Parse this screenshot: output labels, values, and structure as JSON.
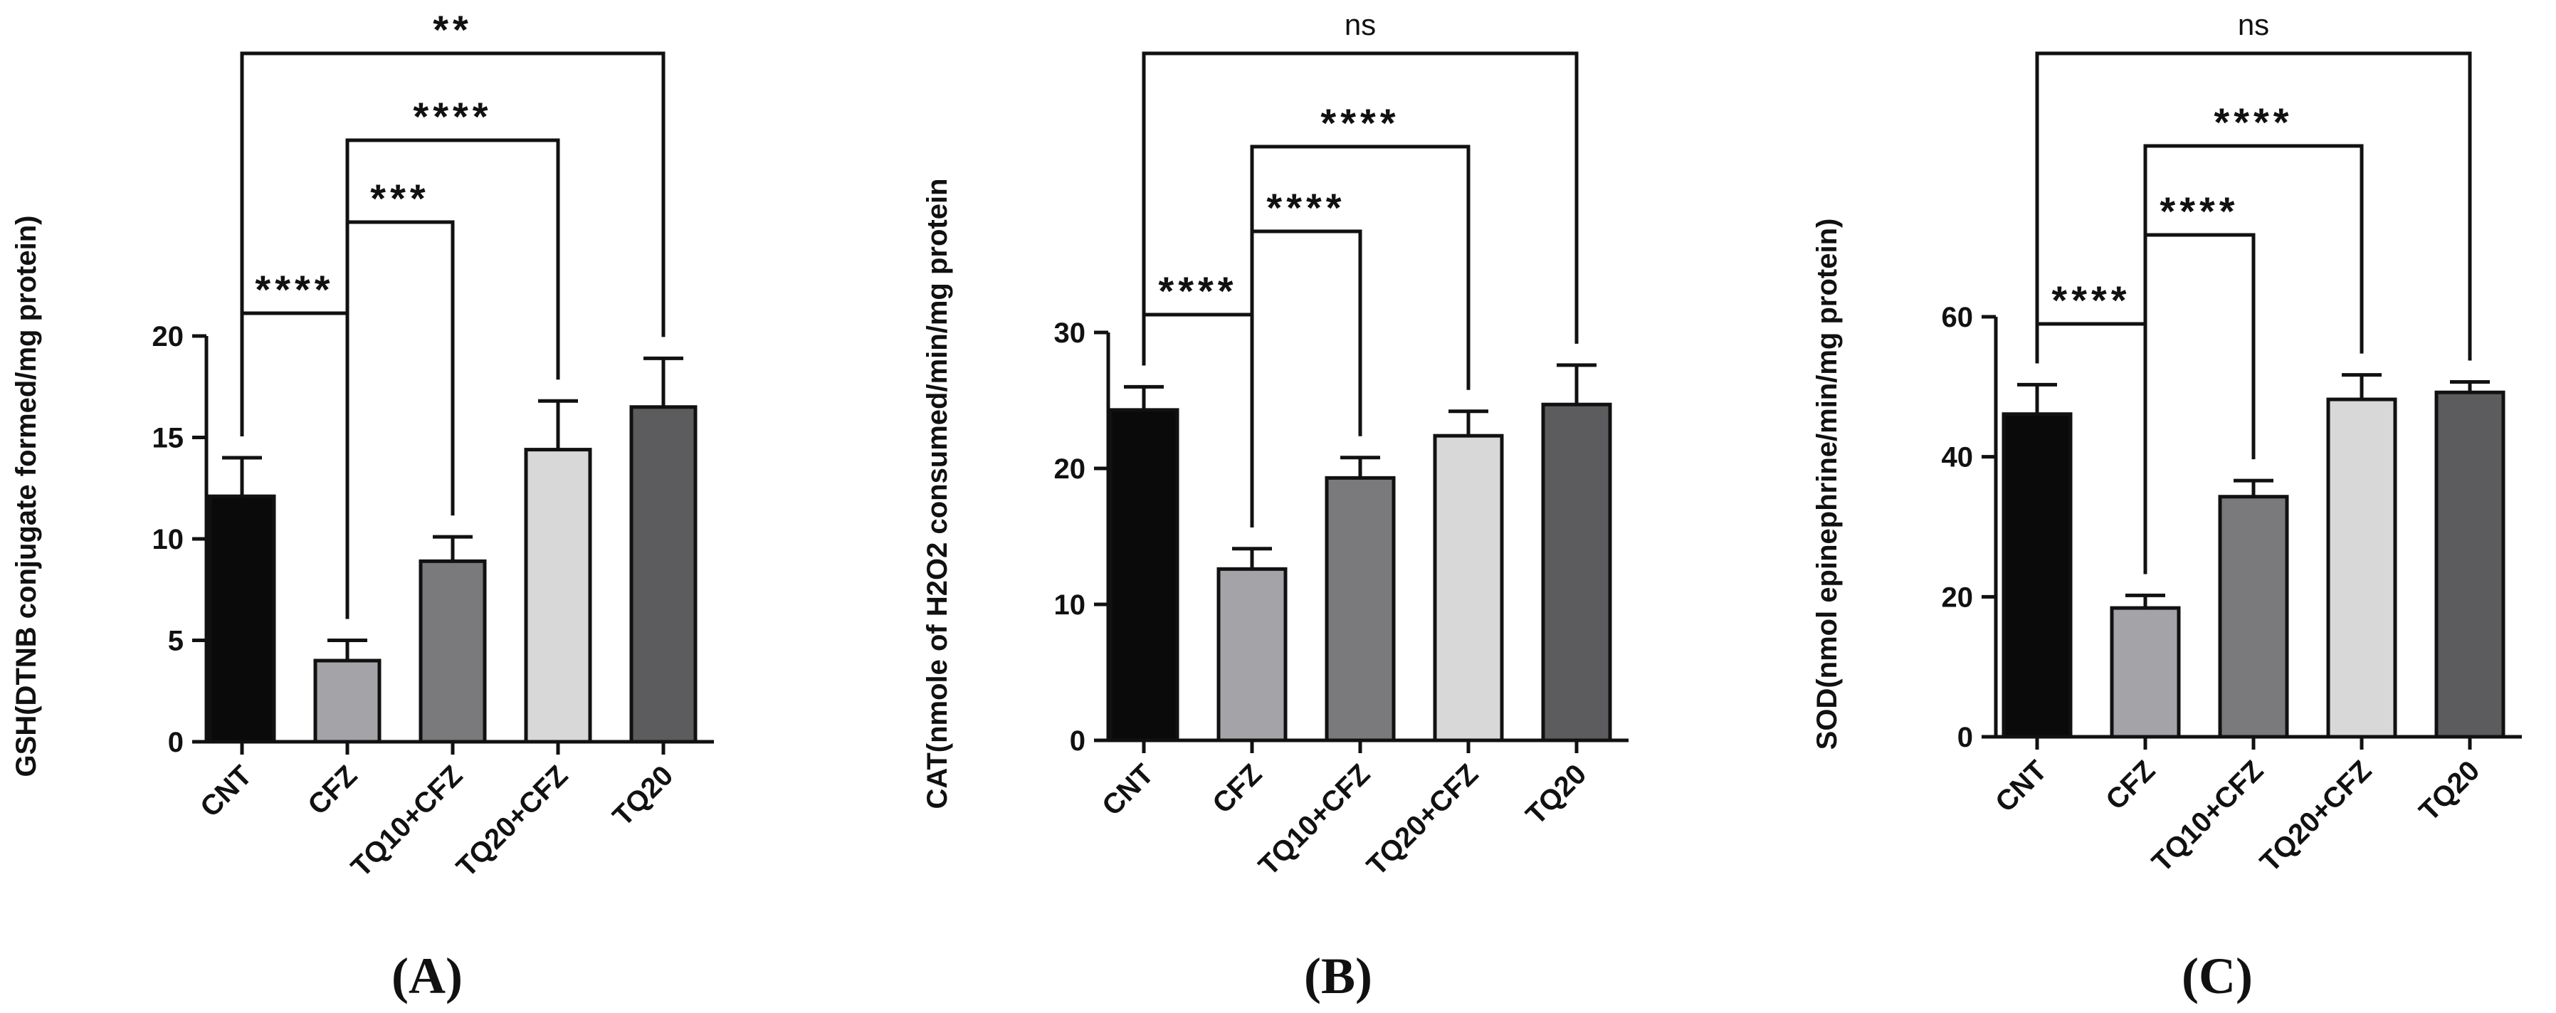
{
  "chart_data": [
    {
      "type": "bar",
      "panel_label": "(A)",
      "ylabel": "GSH(DTNB conjugate formed/mg protein)",
      "categories": [
        "CNT",
        "CFZ",
        "TQ10+CFZ",
        "TQ20+CFZ",
        "TQ20"
      ],
      "values": [
        12.1,
        4.0,
        8.9,
        14.4,
        16.5
      ],
      "errors": [
        1.9,
        1.0,
        1.2,
        2.4,
        2.4
      ],
      "colors": [
        "#0a0a0a",
        "#a4a4a8",
        "#7a7a7c",
        "#d8d8d8",
        "#5c5c5e"
      ],
      "ylim": [
        0,
        20
      ],
      "yticks": [
        "0",
        "5",
        "10",
        "15",
        "20"
      ],
      "significance": [
        {
          "from": "CNT",
          "to": "TQ20",
          "label": "**"
        },
        {
          "from": "CFZ",
          "to": "TQ20+CFZ",
          "label": "****"
        },
        {
          "from": "CFZ",
          "to": "TQ10+CFZ",
          "label": "***"
        },
        {
          "from": "CNT",
          "to": "CFZ",
          "label": "****"
        }
      ]
    },
    {
      "type": "bar",
      "panel_label": "(B)",
      "ylabel": "CAT(nmole of H2O2 consumed/min/mg protein",
      "categories": [
        "CNT",
        "CFZ",
        "TQ10+CFZ",
        "TQ20+CFZ",
        "TQ20"
      ],
      "values": [
        24.3,
        12.6,
        19.3,
        22.4,
        24.7
      ],
      "errors": [
        1.7,
        1.5,
        1.5,
        1.8,
        2.9
      ],
      "colors": [
        "#0a0a0a",
        "#a4a4a8",
        "#7a7a7c",
        "#d8d8d8",
        "#5c5c5e"
      ],
      "ylim": [
        0,
        30
      ],
      "yticks": [
        "0",
        "10",
        "20",
        "30"
      ],
      "significance": [
        {
          "from": "CNT",
          "to": "TQ20",
          "label": "ns"
        },
        {
          "from": "CFZ",
          "to": "TQ20+CFZ",
          "label": "****"
        },
        {
          "from": "CFZ",
          "to": "TQ10+CFZ",
          "label": "****"
        },
        {
          "from": "CNT",
          "to": "CFZ",
          "label": "****"
        }
      ]
    },
    {
      "type": "bar",
      "panel_label": "(C)",
      "ylabel": "SOD(nmol epinephrine/min/mg protein)",
      "categories": [
        "CNT",
        "CFZ",
        "TQ10+CFZ",
        "TQ20+CFZ",
        "TQ20"
      ],
      "values": [
        46.1,
        18.4,
        34.3,
        48.2,
        49.2
      ],
      "errors": [
        4.2,
        1.8,
        2.3,
        3.5,
        1.5
      ],
      "colors": [
        "#0a0a0a",
        "#a4a4a8",
        "#7a7a7c",
        "#d8d8d8",
        "#5c5c5e"
      ],
      "ylim": [
        0,
        60
      ],
      "yticks": [
        "0",
        "20",
        "40",
        "60"
      ],
      "significance": [
        {
          "from": "CNT",
          "to": "TQ20",
          "label": "ns"
        },
        {
          "from": "CFZ",
          "to": "TQ20+CFZ",
          "label": "****"
        },
        {
          "from": "CFZ",
          "to": "TQ10+CFZ",
          "label": "****"
        },
        {
          "from": "CNT",
          "to": "CFZ",
          "label": "****"
        }
      ]
    }
  ]
}
